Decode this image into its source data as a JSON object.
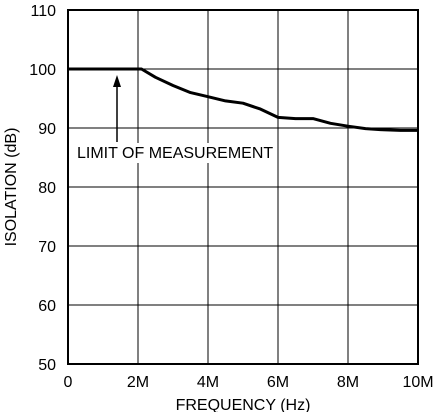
{
  "chart_data": {
    "type": "line",
    "title": "",
    "xlabel": "FREQUENCY (Hz)",
    "ylabel": "ISOLATION (dB)",
    "xlim": [
      0,
      10000000
    ],
    "ylim": [
      50,
      110
    ],
    "x_ticks": [
      0,
      2000000,
      4000000,
      6000000,
      8000000,
      10000000
    ],
    "x_tick_labels": [
      "0",
      "2M",
      "4M",
      "6M",
      "8M",
      "10M"
    ],
    "y_ticks": [
      50,
      60,
      70,
      80,
      90,
      100,
      110
    ],
    "y_tick_labels": [
      "50",
      "60",
      "70",
      "80",
      "90",
      "100",
      "110"
    ],
    "grid": true,
    "series": [
      {
        "x": [
          0,
          2100000,
          2500000,
          3000000,
          3500000,
          4000000,
          4500000,
          5000000,
          5500000,
          6000000,
          6500000,
          7000000,
          7500000,
          8000000,
          8500000,
          9000000,
          9500000,
          10000000
        ],
        "y": [
          100,
          100,
          98.6,
          97.2,
          96.0,
          95.3,
          94.6,
          94.2,
          93.2,
          91.8,
          91.6,
          91.6,
          90.8,
          90.3,
          89.9,
          89.7,
          89.6,
          89.6
        ]
      }
    ],
    "annotations": [
      {
        "text": "LIMIT OF MEASUREMENT",
        "arrow_to": {
          "x": 1400000,
          "y": 100
        }
      }
    ]
  }
}
